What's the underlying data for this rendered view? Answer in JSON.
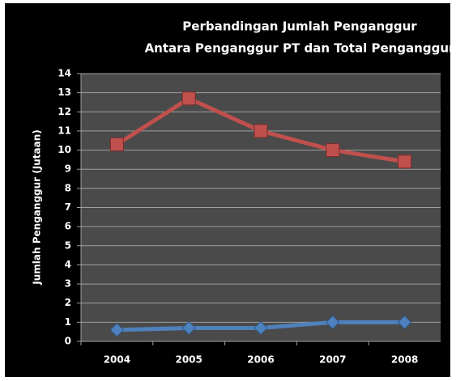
{
  "chart_data": {
    "type": "line",
    "title": [
      "Perbandingan Jumlah Penganggur",
      "Antara Penganggur PT dan Total Penganggur"
    ],
    "y_label": "Jumlah Penganggur (Jutaan)",
    "categories": [
      "2004",
      "2005",
      "2006",
      "2007",
      "2008"
    ],
    "series": [
      {
        "color": "#c0504d",
        "marker": "square",
        "values": [
          10.3,
          12.7,
          11.0,
          10.0,
          9.4
        ]
      },
      {
        "color": "#4f81bd",
        "marker": "diamond",
        "values": [
          0.6,
          0.7,
          0.7,
          1.0,
          1.0
        ]
      }
    ],
    "ylim": [
      0,
      14
    ],
    "yticks": [
      0,
      1,
      2,
      3,
      4,
      5,
      6,
      7,
      8,
      9,
      10,
      11,
      12,
      13,
      14
    ],
    "grid": true
  }
}
